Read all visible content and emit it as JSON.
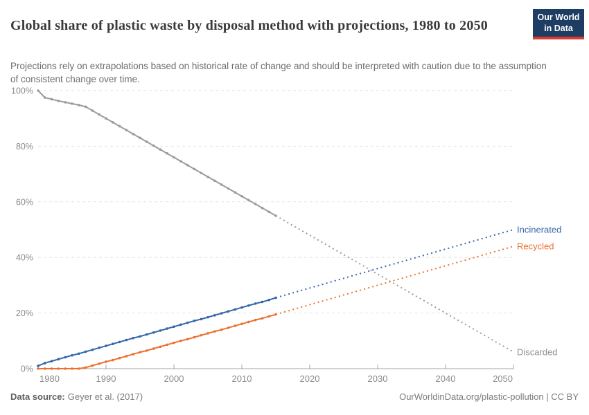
{
  "header": {
    "title": "Global share of plastic waste by disposal method with projections, 1980 to 2050",
    "subtitle": "Projections rely on extrapolations based on historical rate of change and should be interpreted with caution due to the assumption of consistent change over time.",
    "logo_line1": "Our World",
    "logo_line2": "in Data"
  },
  "footer": {
    "source_label": "Data source:",
    "source_value": "Geyer et al. (2017)",
    "credit": "OurWorldinData.org/plastic-pollution | CC BY"
  },
  "chart_data": {
    "type": "line",
    "title": "Global share of plastic waste by disposal method with projections, 1980 to 2050",
    "xlabel": "",
    "ylabel": "",
    "xlim": [
      1980,
      2050
    ],
    "ylim": [
      0,
      100
    ],
    "grid": "horizontal-dashed",
    "legend_position": "end-of-line-labels",
    "x_ticks": [
      "1980",
      "1990",
      "2000",
      "2010",
      "2020",
      "2030",
      "2040",
      "2050"
    ],
    "y_ticks": [
      0,
      20,
      40,
      60,
      80,
      100
    ],
    "y_tick_labels": [
      "0%",
      "20%",
      "40%",
      "60%",
      "80%",
      "100%"
    ],
    "projection_start_year": 2015,
    "colors": {
      "grid": "#e2e2e2",
      "axis": "#a6a6a6",
      "tick_text": "#8a8a8a"
    },
    "series": [
      {
        "name": "Discarded",
        "color": "#9b9b9b",
        "label_color": "#8f8f8f",
        "historical_start_year": 1980,
        "historical_values": [
          100,
          97.5,
          96.9,
          96.3,
          95.8,
          95.3,
          94.8,
          94.2,
          92.8,
          91.4,
          90,
          88.6,
          87.2,
          85.8,
          84.4,
          83,
          81.6,
          80.2,
          78.8,
          77.4,
          76,
          74.6,
          73.2,
          71.8,
          70.4,
          69,
          67.6,
          66.2,
          64.8,
          63.4,
          62,
          60.6,
          59.2,
          57.8,
          56.4,
          55
        ],
        "projection": {
          "years": [
            2015,
            2050
          ],
          "values": [
            55,
            6
          ]
        }
      },
      {
        "name": "Incinerated",
        "color": "#3566a9",
        "label_color": "#3566a9",
        "historical_start_year": 1980,
        "historical_values": [
          1,
          2,
          2.7,
          3.4,
          4.1,
          4.8,
          5.4,
          6.1,
          6.8,
          7.5,
          8.2,
          8.9,
          9.6,
          10.3,
          11,
          11.6,
          12.3,
          13,
          13.7,
          14.4,
          15.1,
          15.8,
          16.5,
          17.2,
          17.8,
          18.5,
          19.2,
          19.9,
          20.6,
          21.3,
          22,
          22.7,
          23.4,
          24,
          24.7,
          25.5
        ],
        "projection": {
          "years": [
            2015,
            2050
          ],
          "values": [
            25.5,
            50
          ]
        }
      },
      {
        "name": "Recycled",
        "color": "#ed6f2f",
        "label_color": "#ed6f2f",
        "historical_start_year": 1980,
        "historical_values": [
          0,
          0,
          0,
          0,
          0,
          0,
          0,
          0.4,
          1.1,
          1.8,
          2.5,
          3.1,
          3.8,
          4.5,
          5.2,
          5.9,
          6.5,
          7.2,
          7.9,
          8.6,
          9.3,
          10,
          10.6,
          11.3,
          12,
          12.7,
          13.4,
          14,
          14.7,
          15.4,
          16.1,
          16.8,
          17.5,
          18.1,
          18.8,
          19.5
        ],
        "projection": {
          "years": [
            2015,
            2050
          ],
          "values": [
            19.5,
            44
          ]
        }
      }
    ]
  }
}
